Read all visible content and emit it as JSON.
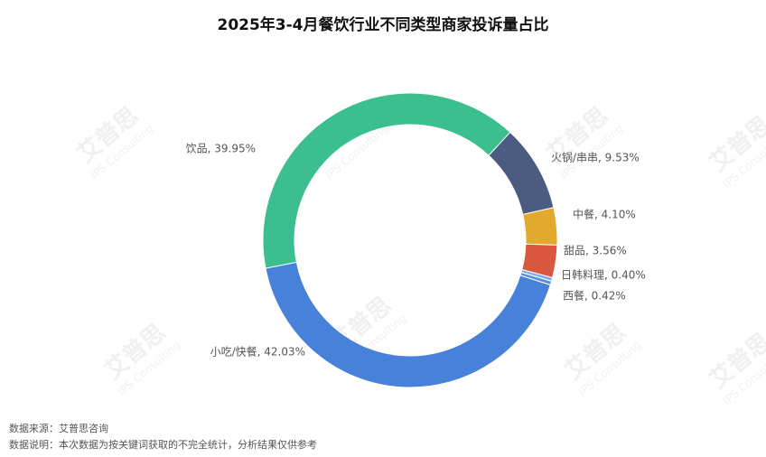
{
  "chart_data": {
    "type": "donut",
    "title": "2025年3-4月餐饮行业不同类型商家投诉量占比",
    "values": [
      39.95,
      9.53,
      4.1,
      3.56,
      0.4,
      0.42,
      42.03
    ],
    "value_labels": [
      "饮品, 39.95%",
      "火锅/串串, 9.53%",
      "中餐, 4.10%",
      "甜品, 3.56%",
      "日韩料理, 0.40%",
      "西餐, 0.42%",
      "小吃/快餐, 42.03%"
    ],
    "colors": [
      "#3bbf8e",
      "#4b5c80",
      "#e2a92c",
      "#d9573f",
      "#7fb0ef",
      "#5b8fda",
      "#4781da"
    ],
    "notes": [
      "数据来源：艾普思咨询",
      "数据说明：本次数据为按关键词获取的不完全统计，分析结果仅供参考"
    ],
    "watermark": [
      "艾普思",
      "IPS Consulting"
    ]
  }
}
